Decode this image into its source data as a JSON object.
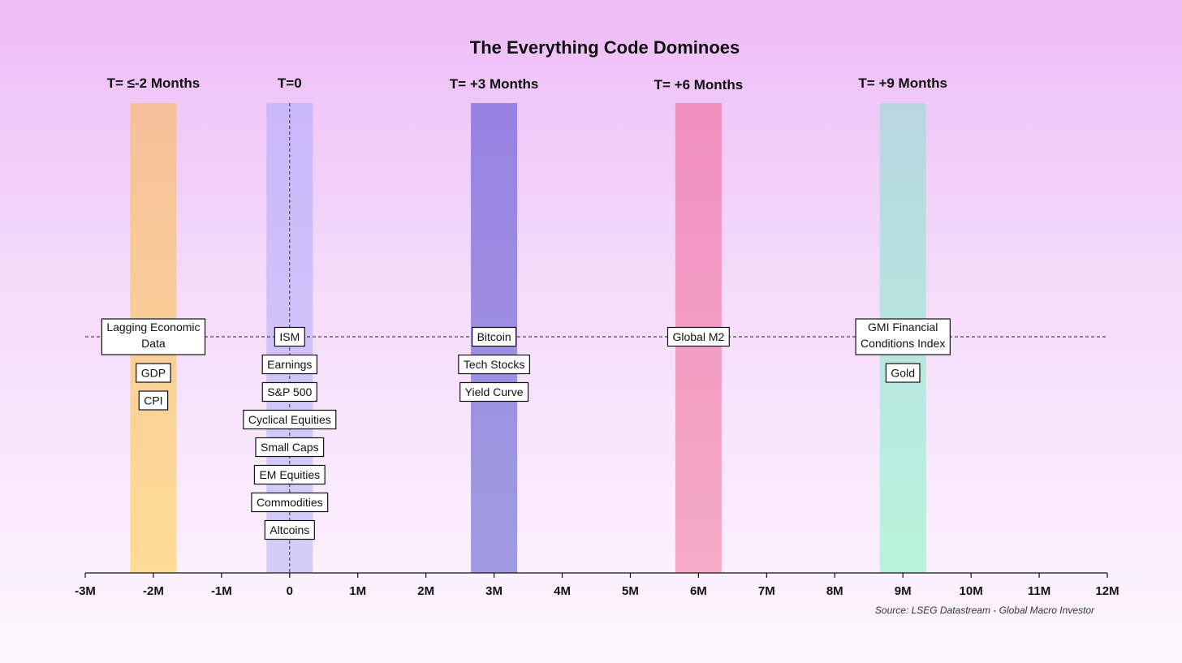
{
  "chart_data": {
    "type": "timeline",
    "title": "The Everything Code Dominoes",
    "source": "Source: LSEG Datastream - Global Macro Investor",
    "x_range": [
      -3,
      12
    ],
    "x_ticks": [
      "-3M",
      "-2M",
      "-1M",
      "0",
      "1M",
      "2M",
      "3M",
      "4M",
      "5M",
      "6M",
      "7M",
      "8M",
      "9M",
      "10M",
      "11M",
      "12M"
    ],
    "periods": [
      {
        "label": "T= ≤-2 Months",
        "month": -2,
        "band_color_top": "#f6c09a",
        "band_color_bottom": "#fddc95",
        "items": [
          [
            "Lagging Economic",
            "Data"
          ],
          [
            "GDP"
          ],
          [
            "CPI"
          ]
        ]
      },
      {
        "label": "T=0",
        "month": 0,
        "band_color_top": "#cbb7fb",
        "band_color_bottom": "#d5cdf9",
        "items": [
          [
            "ISM"
          ],
          [
            "Earnings"
          ],
          [
            "S&P 500"
          ],
          [
            "Cyclical Equities"
          ],
          [
            "Small Caps"
          ],
          [
            "EM Equities"
          ],
          [
            "Commodities"
          ],
          [
            "Altcoins"
          ]
        ]
      },
      {
        "label": "T= +3 Months",
        "month": 3,
        "band_color_top": "#9882e2",
        "band_color_bottom": "#a09be0",
        "items": [
          [
            "Bitcoin"
          ],
          [
            "Tech Stocks"
          ],
          [
            "Yield Curve"
          ]
        ]
      },
      {
        "label": "T= +6 Months",
        "month": 6,
        "band_color_top": "#f08fc0",
        "band_color_bottom": "#f5aac6",
        "items": [
          [
            "Global M2"
          ]
        ]
      },
      {
        "label": "T= +9 Months",
        "month": 9,
        "band_color_top": "#b7d7e0",
        "band_color_bottom": "#b8f3dc",
        "items": [
          [
            "GMI Financial",
            "Conditions Index"
          ],
          [
            "Gold"
          ]
        ]
      }
    ],
    "reference_line": "dashed horizontal line through first item of each period; dashed vertical line at month 0"
  }
}
